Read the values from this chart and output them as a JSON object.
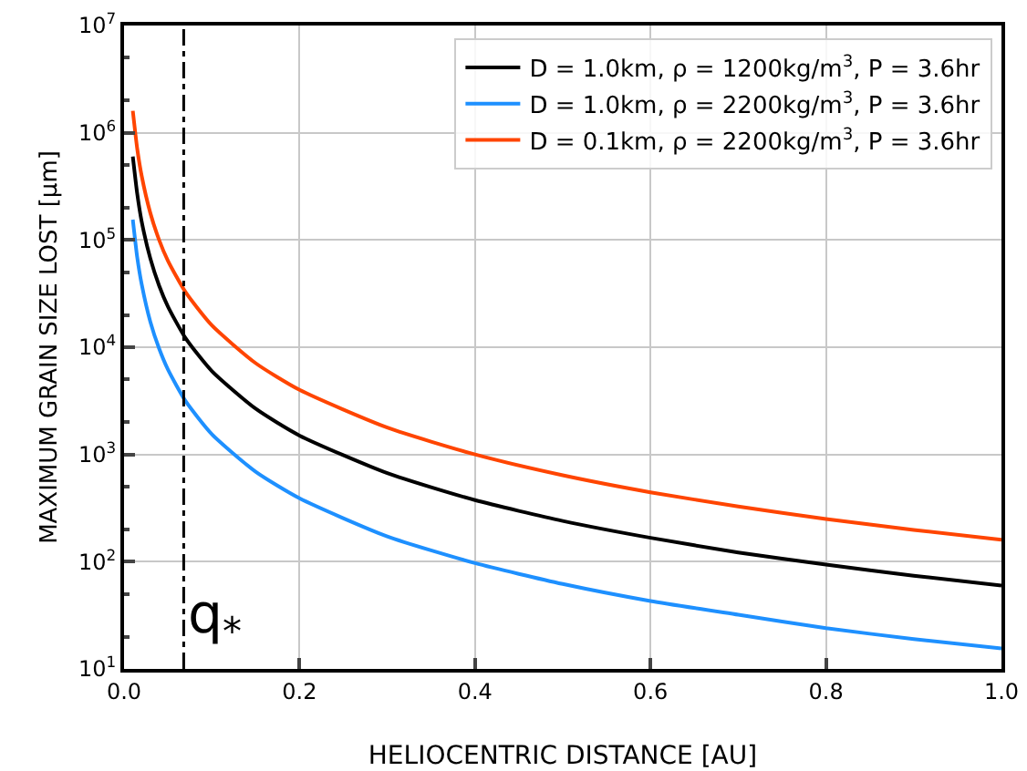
{
  "chart_data": {
    "type": "line",
    "xlabel": "HELIOCENTRIC DISTANCE [AU]",
    "ylabel": "MAXIMUM GRAIN SIZE LOST [μm]",
    "x": [
      0.01,
      0.015,
      0.02,
      0.03,
      0.04,
      0.05,
      0.07,
      0.1,
      0.15,
      0.2,
      0.3,
      0.4,
      0.5,
      0.6,
      0.7,
      0.8,
      0.9,
      1.0
    ],
    "series": [
      {
        "name": "D = 1.0km, ρ = 1200kg/m$^{3}$, P = 3.6hr",
        "color": "#000000",
        "values": [
          600000,
          270000,
          150000,
          67000,
          37500,
          24000,
          12200,
          6000,
          2670,
          1500,
          670,
          375,
          240,
          167,
          122,
          94,
          74,
          60
        ]
      },
      {
        "name": "D = 1.0km, ρ = 2200kg/m$^{3}$, P = 3.6hr",
        "color": "#1e90ff",
        "values": [
          155000,
          69000,
          39000,
          17200,
          9700,
          6200,
          3160,
          1550,
          690,
          390,
          172,
          97,
          62,
          43,
          32,
          24,
          19,
          15.5
        ]
      },
      {
        "name": "D = 0.1km, ρ = 2200kg/m$^{3}$, P = 3.6hr",
        "color": "#ff4500",
        "values": [
          1600000,
          711000,
          400000,
          178000,
          100000,
          64000,
          32700,
          16000,
          7100,
          4000,
          1780,
          1000,
          640,
          444,
          327,
          250,
          198,
          160
        ]
      }
    ],
    "log": "y",
    "xlim": [
      0,
      1
    ],
    "ylim": [
      10,
      10000000
    ],
    "xticks": [
      {
        "value": 0,
        "label": "0.0"
      },
      0.2,
      0.4,
      0.6,
      0.8,
      {
        "value": 1,
        "label": "1.0"
      }
    ],
    "yticks": [
      {
        "value": 10,
        "label": "10$^{1}$"
      },
      {
        "value": 100,
        "label": "10$^{2}$"
      },
      {
        "value": 1000,
        "label": "10$^{3}$"
      },
      {
        "value": 10000,
        "label": "10$^{4}$"
      },
      {
        "value": 100000,
        "label": "10$^{5}$"
      },
      {
        "value": 1000000,
        "label": "10$^{6}$"
      },
      {
        "value": 10000000,
        "label": "10$^{7}$"
      }
    ],
    "ref_lines": [
      {
        "axis": "x",
        "value": 0.068,
        "label": "q$_{*}$",
        "color": "#000000",
        "line_style": "dashdot"
      }
    ],
    "grid": true,
    "legend": "top right",
    "marker": "none",
    "line_style": "solid"
  }
}
